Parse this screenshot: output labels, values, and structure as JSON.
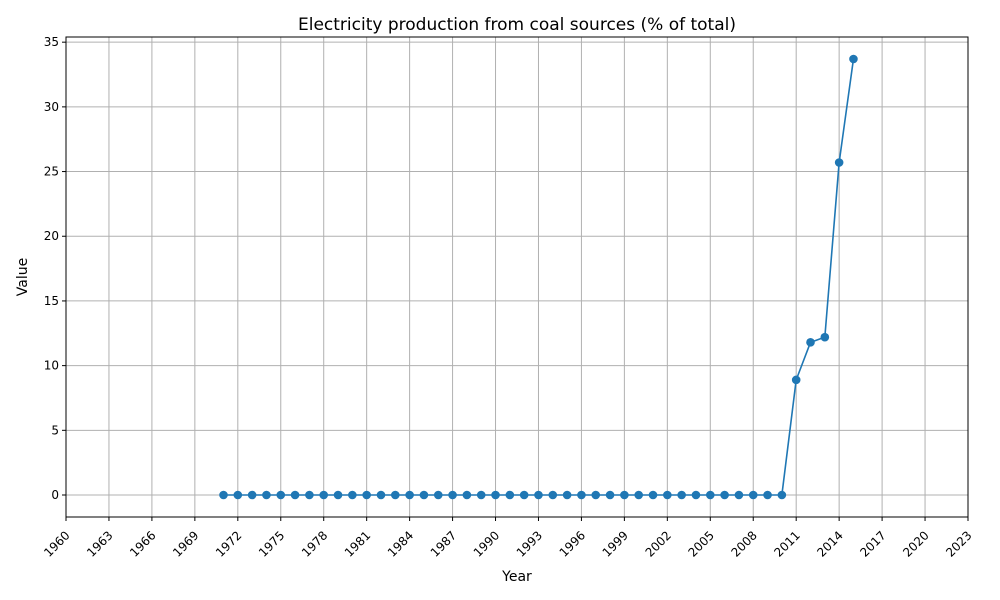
{
  "chart_data": {
    "type": "line",
    "title": "Electricity production from coal sources (% of total)",
    "xlabel": "Year",
    "ylabel": "Value",
    "xlim": [
      1960,
      2023
    ],
    "ylim": [
      -1.7,
      35.4
    ],
    "x_ticks": [
      1960,
      1963,
      1966,
      1969,
      1972,
      1975,
      1978,
      1981,
      1984,
      1987,
      1990,
      1993,
      1996,
      1999,
      2002,
      2005,
      2008,
      2011,
      2014,
      2017,
      2020,
      2023
    ],
    "y_ticks": [
      0,
      5,
      10,
      15,
      20,
      25,
      30,
      35
    ],
    "grid": true,
    "series": [
      {
        "color": "#1f77b4",
        "x": [
          1971,
          1972,
          1973,
          1974,
          1975,
          1976,
          1977,
          1978,
          1979,
          1980,
          1981,
          1982,
          1983,
          1984,
          1985,
          1986,
          1987,
          1988,
          1989,
          1990,
          1991,
          1992,
          1993,
          1994,
          1995,
          1996,
          1997,
          1998,
          1999,
          2000,
          2001,
          2002,
          2003,
          2004,
          2005,
          2006,
          2007,
          2008,
          2009,
          2010,
          2011,
          2012,
          2013,
          2014,
          2015
        ],
        "values": [
          0,
          0,
          0,
          0,
          0,
          0,
          0,
          0,
          0,
          0,
          0,
          0,
          0,
          0,
          0,
          0,
          0,
          0,
          0,
          0,
          0,
          0,
          0,
          0,
          0,
          0,
          0,
          0,
          0,
          0,
          0,
          0,
          0,
          0,
          0,
          0,
          0,
          0,
          0,
          0,
          8.9,
          11.8,
          12.2,
          25.7,
          33.7
        ]
      }
    ]
  }
}
